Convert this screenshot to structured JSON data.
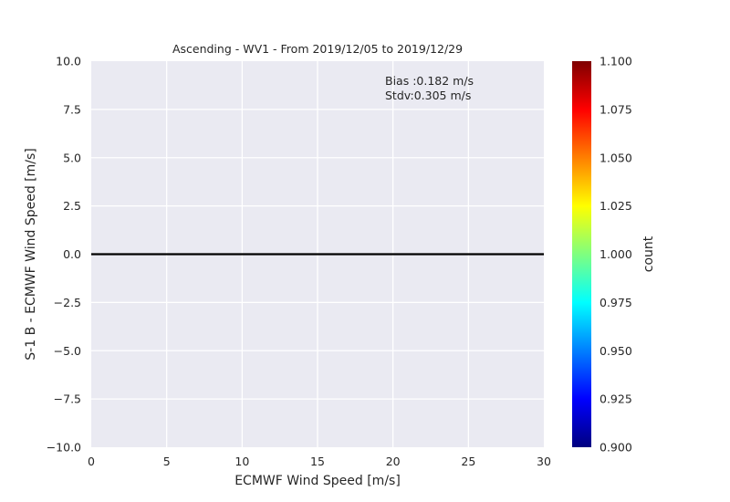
{
  "chart_data": {
    "type": "heatmap",
    "title": "Ascending - WV1 - From 2019/12/05 to 2019/12/29",
    "xlabel": "ECMWF Wind Speed [m/s]",
    "ylabel": "S-1 B - ECMWF Wind Speed [m/s]",
    "xlim": [
      0,
      30
    ],
    "ylim": [
      -10,
      10
    ],
    "xticks": [
      0,
      5,
      10,
      15,
      20,
      25,
      30
    ],
    "yticks": [
      -10.0,
      -7.5,
      -5.0,
      -2.5,
      0.0,
      2.5,
      5.0,
      7.5,
      10.0
    ],
    "xtick_labels": [
      "0",
      "5",
      "10",
      "15",
      "20",
      "25",
      "30"
    ],
    "ytick_labels": [
      "−10.0",
      "−7.5",
      "−5.0",
      "−2.5",
      "0.0",
      "2.5",
      "5.0",
      "7.5",
      "10.0"
    ],
    "grid": true,
    "reference_line_y": 0,
    "annotations": [
      "Bias :0.182 m/s",
      "Stdv:0.305 m/s"
    ],
    "colorbar": {
      "label": "count",
      "range": [
        0.9,
        1.1
      ],
      "ticks": [
        0.9,
        0.925,
        0.95,
        0.975,
        1.0,
        1.025,
        1.05,
        1.075,
        1.1
      ],
      "tick_labels": [
        "0.900",
        "0.925",
        "0.950",
        "0.975",
        "1.000",
        "1.025",
        "1.050",
        "1.075",
        "1.100"
      ],
      "colormap": "jet"
    },
    "colors": {
      "plot_background": "#eaeaf2",
      "grid": "#ffffff",
      "reference_line": "#000000",
      "jet_stops": [
        "#00007f",
        "#0000ff",
        "#007fff",
        "#00ffff",
        "#7fff7f",
        "#ffff00",
        "#ff7f00",
        "#ff0000",
        "#7f0000"
      ]
    }
  }
}
